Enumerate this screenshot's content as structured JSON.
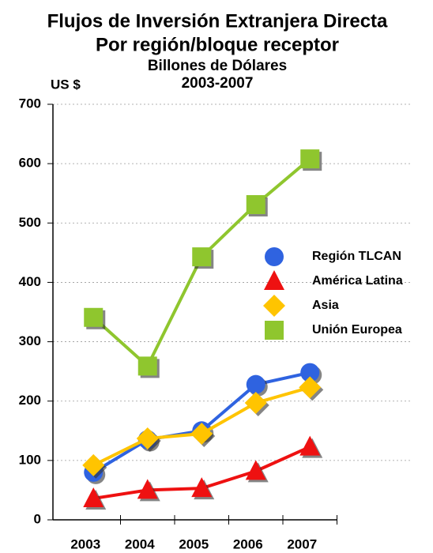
{
  "chart_data": {
    "type": "line",
    "title": "Flujos de Inversión Extranjera Directa",
    "subtitle": "Por región/bloque receptor",
    "unit_note": "Billones de Dólares",
    "period": "2003-2007",
    "y_label": "US $",
    "categories": [
      "2003",
      "2004",
      "2005",
      "2006",
      "2007"
    ],
    "series": [
      {
        "name": "Región TLCAN",
        "color": "#2f63e0",
        "marker": "circle",
        "values": [
          80,
          135,
          150,
          228,
          248
        ]
      },
      {
        "name": "América Latina",
        "color": "#ee1111",
        "marker": "triangle",
        "values": [
          36,
          50,
          53,
          82,
          123
        ]
      },
      {
        "name": "Asia",
        "color": "#ffc400",
        "marker": "diamond",
        "values": [
          92,
          137,
          145,
          197,
          223
        ]
      },
      {
        "name": "Unión Europea",
        "color": "#8fc62e",
        "marker": "square",
        "values": [
          341,
          259,
          443,
          531,
          608
        ]
      }
    ],
    "ylim": [
      0,
      700
    ],
    "yticks": [
      0,
      100,
      200,
      300,
      400,
      500,
      600,
      700
    ],
    "grid": true
  }
}
